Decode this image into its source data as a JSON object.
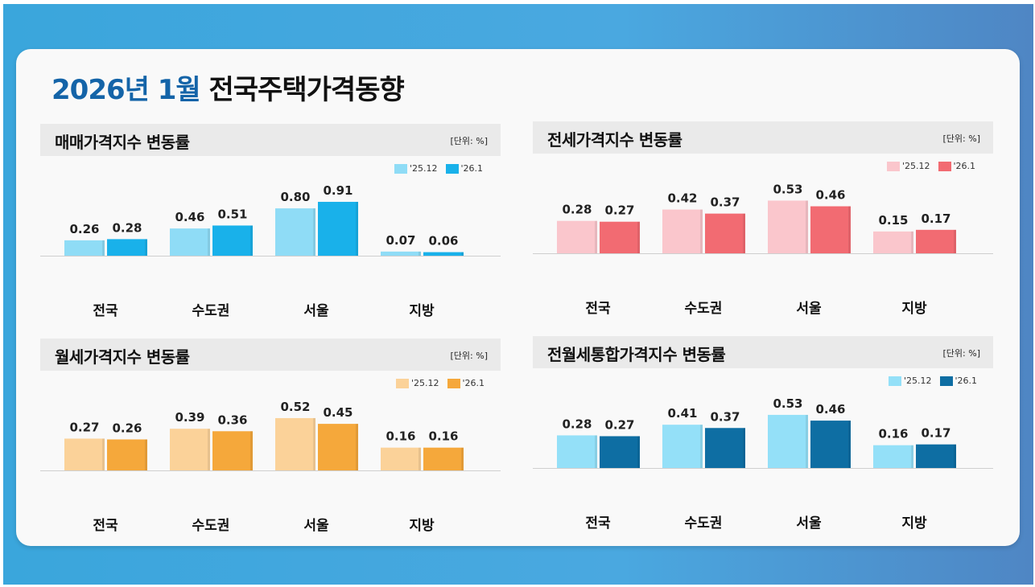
{
  "title": {
    "date": "2026년 1월",
    "rest": "전국주택가격동향"
  },
  "regions": [
    "전국",
    "수도권",
    "서울",
    "지방"
  ],
  "chart_data": [
    {
      "type": "bar",
      "title": "매매가격지수 변동률",
      "unit": "[단위: %]",
      "categories": [
        "전국",
        "수도권",
        "서울",
        "지방"
      ],
      "series": [
        {
          "name": "'25.12",
          "values": [
            0.26,
            0.46,
            0.8,
            0.07
          ],
          "color": "#8fdcf6"
        },
        {
          "name": "'26.1",
          "values": [
            0.28,
            0.51,
            0.91,
            0.06
          ],
          "color": "#19b1ea"
        }
      ]
    },
    {
      "type": "bar",
      "title": "전세가격지수 변동률",
      "unit": "[단위: %]",
      "categories": [
        "전국",
        "수도권",
        "서울",
        "지방"
      ],
      "series": [
        {
          "name": "'25.12",
          "values": [
            0.28,
            0.42,
            0.53,
            0.15
          ],
          "color": "#fac6cc"
        },
        {
          "name": "'26.1",
          "values": [
            0.27,
            0.37,
            0.46,
            0.17
          ],
          "color": "#f26b72"
        }
      ]
    },
    {
      "type": "bar",
      "title": "월세가격지수 변동률",
      "unit": "[단위: %]",
      "categories": [
        "전국",
        "수도권",
        "서울",
        "지방"
      ],
      "series": [
        {
          "name": "'25.12",
          "values": [
            0.27,
            0.39,
            0.52,
            0.16
          ],
          "color": "#fbd299"
        },
        {
          "name": "'26.1",
          "values": [
            0.26,
            0.36,
            0.45,
            0.16
          ],
          "color": "#f5a83b"
        }
      ]
    },
    {
      "type": "bar",
      "title": "전월세통합가격지수 변동률",
      "unit": "[단위: %]",
      "categories": [
        "전국",
        "수도권",
        "서울",
        "지방"
      ],
      "series": [
        {
          "name": "'25.12",
          "values": [
            0.28,
            0.41,
            0.53,
            0.16
          ],
          "color": "#94e0f8"
        },
        {
          "name": "'26.1",
          "values": [
            0.27,
            0.37,
            0.46,
            0.17
          ],
          "color": "#0e6ea3"
        }
      ]
    }
  ]
}
